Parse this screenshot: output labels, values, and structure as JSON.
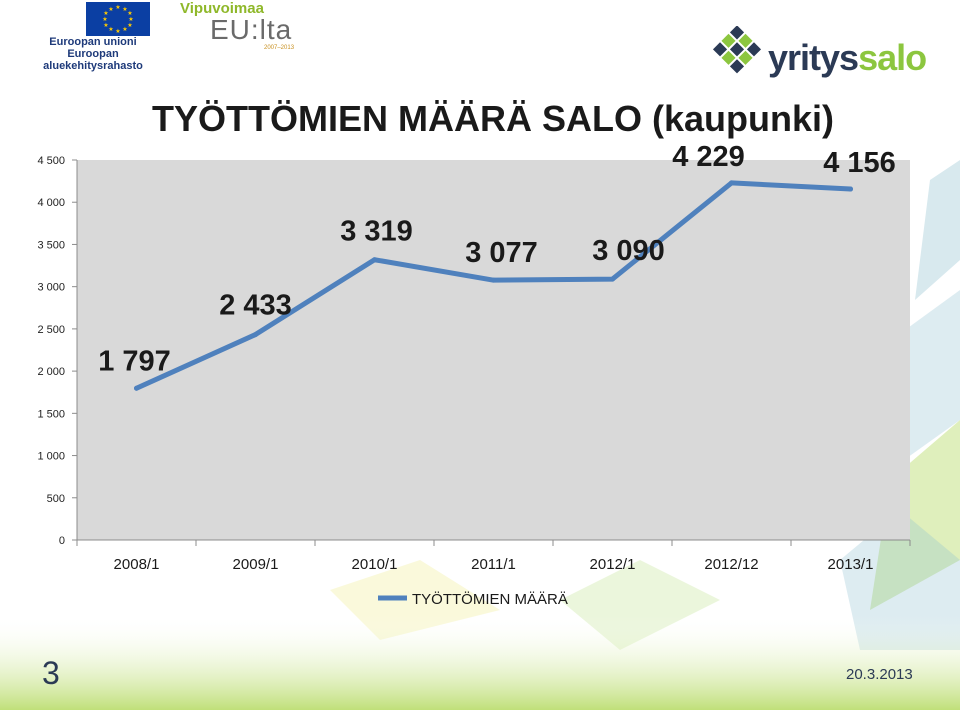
{
  "logos": {
    "eu": {
      "line1": "Euroopan unioni",
      "line2": "Euroopan aluekehitysrahasto"
    },
    "vipuvoimaa": {
      "top": "Vipuvoimaa",
      "main": "EU:lta",
      "years": "2007–2013"
    },
    "yrityssalo": {
      "part1": "yritys",
      "part2": "salo"
    }
  },
  "slide": {
    "number": "3",
    "date": "20.3.2013"
  },
  "colors": {
    "line": "#4f81bd",
    "plot_bg": "#d9d9d9",
    "accent_green": "#8cc63f",
    "navy": "#2b3a55"
  },
  "chart_data": {
    "type": "line",
    "title": "TYÖTTÖMIEN MÄÄRÄ SALO (kaupunki)",
    "categories": [
      "2008/1",
      "2009/1",
      "2010/1",
      "2011/1",
      "2012/1",
      "2012/12",
      "2013/1"
    ],
    "series": [
      {
        "name": "TYÖTTÖMIEN MÄÄRÄ",
        "values": [
          1797,
          2433,
          3319,
          3077,
          3090,
          4229,
          4156
        ]
      }
    ],
    "data_labels": [
      "1 797",
      "2 433",
      "3 319",
      "3 077",
      "3 090",
      "4 229",
      "4 156"
    ],
    "yticks": [
      "0",
      "500",
      "1 000",
      "1 500",
      "2 000",
      "2 500",
      "3 000",
      "3 500",
      "4 000",
      "4 500"
    ],
    "ylim": [
      0,
      4500
    ],
    "xlabel": "",
    "ylabel": "",
    "grid": false,
    "legend": "bottom"
  }
}
